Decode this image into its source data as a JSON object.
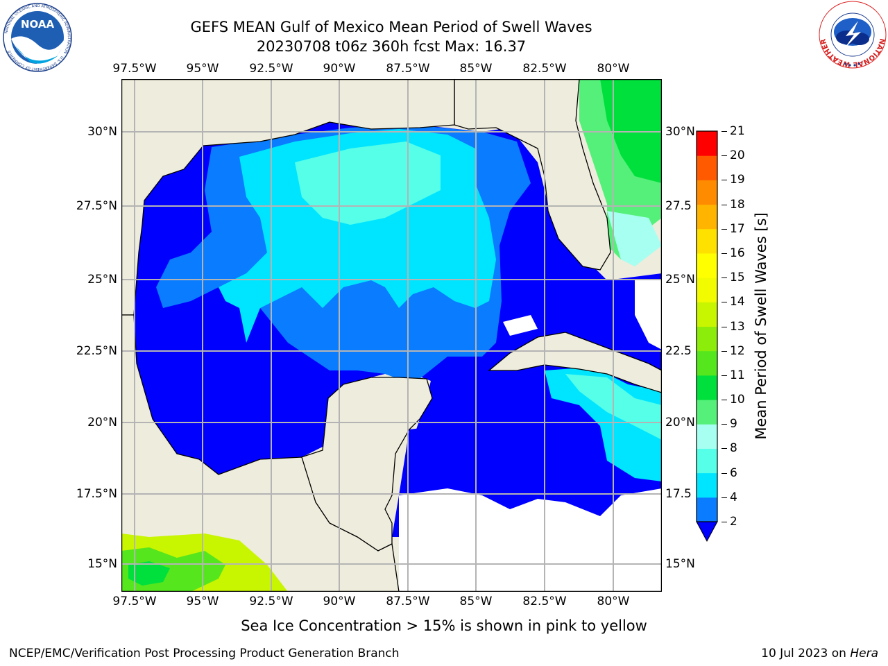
{
  "title": {
    "line1": "GEFS MEAN Gulf of Mexico Mean Period of Swell Waves",
    "line2": "20230708 t06z 360h fcst   Max: 16.37"
  },
  "map": {
    "lon_labels": [
      "97.5°W",
      "95°W",
      "92.5°W",
      "90°W",
      "87.5°W",
      "85°W",
      "82.5°W",
      "80°W"
    ],
    "lat_labels_left": [
      "30°N",
      "27.5°N",
      "25°N",
      "22.5°N",
      "20°N",
      "17.5°N",
      "15°N"
    ],
    "lat_labels_right": [
      "30°N",
      "27.5",
      "25°N",
      "22.5",
      "20°N",
      "17.5",
      "15°N"
    ],
    "lon_range": [
      -98,
      -78.2
    ],
    "lat_range": [
      14,
      31.7
    ],
    "colors": {
      "land": "#eeecdc",
      "grid": "#b4b4b4",
      "coast": "#000000"
    }
  },
  "colorbar": {
    "label": "Mean Period of Swell Waves [s]",
    "levels": [
      2,
      4,
      6,
      8,
      9,
      10,
      11,
      12,
      13,
      14,
      15,
      16,
      17,
      18,
      19,
      20,
      21
    ],
    "tick_labels": [
      "2",
      "4",
      "6",
      "8",
      "9",
      "10",
      "11",
      "12",
      "13",
      "14",
      "15",
      "16",
      "17",
      "18",
      "19",
      "20",
      "21"
    ],
    "colors": [
      "#0a7cff",
      "#00e5ff",
      "#55ffe8",
      "#a6fff0",
      "#55f07a",
      "#00e03c",
      "#55e61e",
      "#8ced0a",
      "#c8f500",
      "#f2fb00",
      "#ffff00",
      "#ffe100",
      "#ffb400",
      "#ff8c00",
      "#ff5a00",
      "#ff2d00",
      "#ff0000"
    ],
    "under_color": "#0000ff",
    "extend": "min"
  },
  "note": "Sea Ice Concentration > 15% is shown in pink to yellow",
  "footer": {
    "credit": "NCEP/EMC/Verification Post Processing Product Generation Branch",
    "date": "10 Jul 2023 on ",
    "host": "Hera"
  },
  "logos": {
    "noaa_text": "NOAA",
    "noaa_ring_text": "NATIONAL OCEANIC AND ATMOSPHERIC ADMINISTRATION · U.S. DEPARTMENT OF COMMERCE",
    "nws_ring_text": "NATIONAL WEATHER SERVICE"
  }
}
